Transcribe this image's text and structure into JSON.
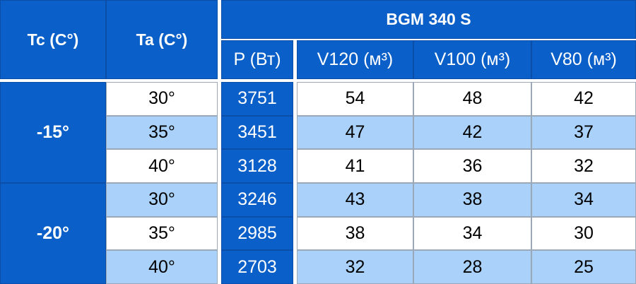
{
  "table": {
    "headers": {
      "tc": "Tc (C°)",
      "ta": "Ta (C°)",
      "model": "BGM 340 S",
      "columns": [
        "P (Вт)",
        "V120 (м³)",
        "V100 (м³)",
        "V80 (м³)"
      ]
    },
    "groups": [
      {
        "tc": "-15°",
        "rows": [
          [
            "30°",
            3751,
            54,
            48,
            42
          ],
          [
            "35°",
            3451,
            47,
            42,
            37
          ],
          [
            "40°",
            3128,
            41,
            36,
            32
          ]
        ]
      },
      {
        "tc": "-20°",
        "rows": [
          [
            "30°",
            3246,
            43,
            38,
            34
          ],
          [
            "35°",
            2985,
            38,
            34,
            30
          ],
          [
            "40°",
            2703,
            32,
            28,
            25
          ]
        ]
      }
    ]
  }
}
